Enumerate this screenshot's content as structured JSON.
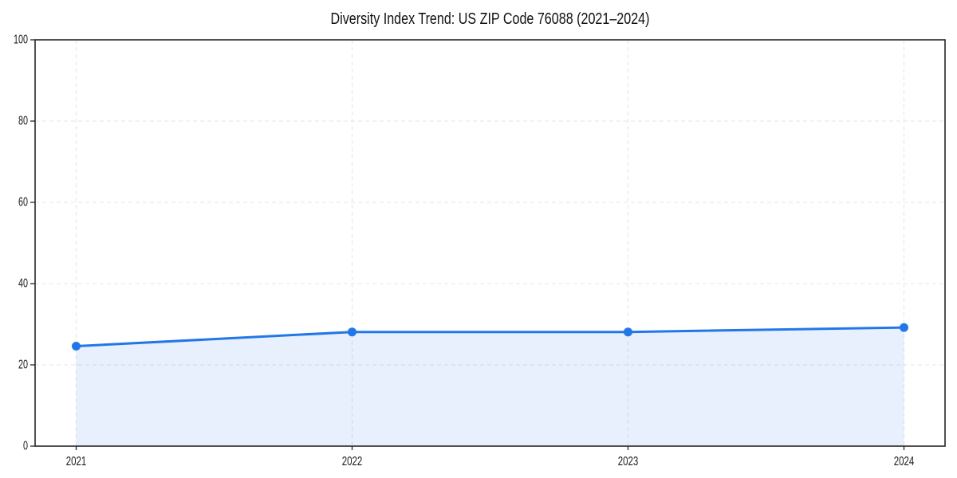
{
  "chart_data": {
    "type": "area",
    "title": "Diversity Index Trend: US ZIP Code 76088 (2021–2024)",
    "x": [
      2021,
      2022,
      2023,
      2024
    ],
    "xtick_labels": [
      "2021",
      "2022",
      "2023",
      "2024"
    ],
    "series": [
      {
        "name": "Diversity Index",
        "values": [
          24.6,
          28.1,
          28.1,
          29.2
        ]
      }
    ],
    "xlabel": "",
    "ylabel": "",
    "ylim": [
      0,
      100
    ],
    "yticks": [
      0,
      20,
      40,
      60,
      80,
      100
    ],
    "grid": "dashed",
    "legend_position": "none",
    "colors": {
      "line": "#2277e8",
      "marker": "#2277e8",
      "fill": "#2277e8",
      "fill_opacity": 0.11,
      "grid": "#e4e4e4",
      "frame": "#262626",
      "text": "#111111",
      "background": "#ffffff"
    }
  }
}
